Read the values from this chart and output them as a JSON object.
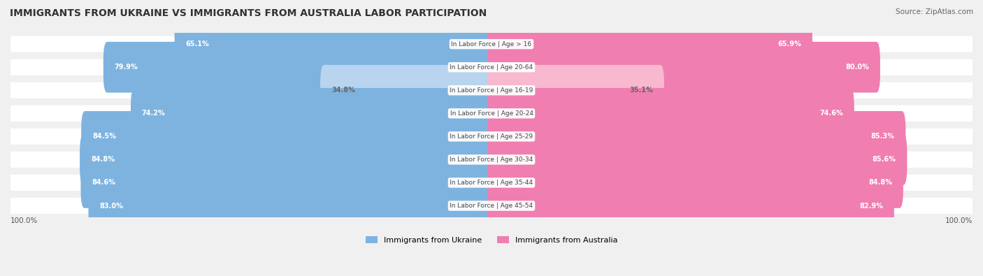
{
  "title": "IMMIGRANTS FROM UKRAINE VS IMMIGRANTS FROM AUSTRALIA LABOR PARTICIPATION",
  "source": "Source: ZipAtlas.com",
  "categories": [
    "In Labor Force | Age > 16",
    "In Labor Force | Age 20-64",
    "In Labor Force | Age 16-19",
    "In Labor Force | Age 20-24",
    "In Labor Force | Age 25-29",
    "In Labor Force | Age 30-34",
    "In Labor Force | Age 35-44",
    "In Labor Force | Age 45-54"
  ],
  "ukraine_values": [
    65.1,
    79.9,
    34.8,
    74.2,
    84.5,
    84.8,
    84.6,
    83.0
  ],
  "australia_values": [
    65.9,
    80.0,
    35.1,
    74.6,
    85.3,
    85.6,
    84.8,
    82.9
  ],
  "ukraine_color": "#7EB3E0",
  "australia_color": "#F07EB0",
  "ukraine_color_light": "#B8D4EE",
  "australia_color_light": "#F8B8D0",
  "bg_color": "#F0F0F0",
  "bar_bg_color": "#FFFFFF",
  "row_bg_color": "#F8F8F8",
  "label_fontsize": 7.5,
  "title_fontsize": 10,
  "legend_ukraine": "Immigrants from Ukraine",
  "legend_australia": "Immigrants from Australia",
  "bar_height": 0.6,
  "max_value": 100.0
}
